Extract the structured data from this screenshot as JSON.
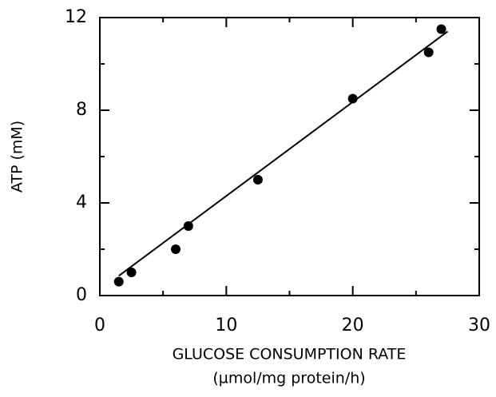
{
  "chart_data": {
    "type": "scatter",
    "x_label": "GLUCOSE CONSUMPTION RATE",
    "x_label_units": "(µmol/mg protein/h)",
    "y_label": "ATP (mM)",
    "x": [
      1.5,
      2.5,
      6,
      7,
      12.5,
      20,
      26,
      27
    ],
    "values": [
      0.6,
      1.0,
      2.0,
      3.0,
      5.0,
      8.5,
      10.5,
      11.5
    ],
    "color": "#000000",
    "fit_line": {
      "x": [
        1.5,
        27.5
      ],
      "y": [
        0.85,
        11.4
      ]
    },
    "xlim": [
      0,
      30
    ],
    "xticks": [
      0,
      10,
      20,
      30
    ],
    "xminor_ticks": [
      5,
      15,
      25
    ],
    "ylim": [
      0,
      12
    ],
    "yticks": [
      0,
      4,
      8,
      12
    ],
    "yminor_ticks": [
      2,
      6,
      10
    ]
  }
}
